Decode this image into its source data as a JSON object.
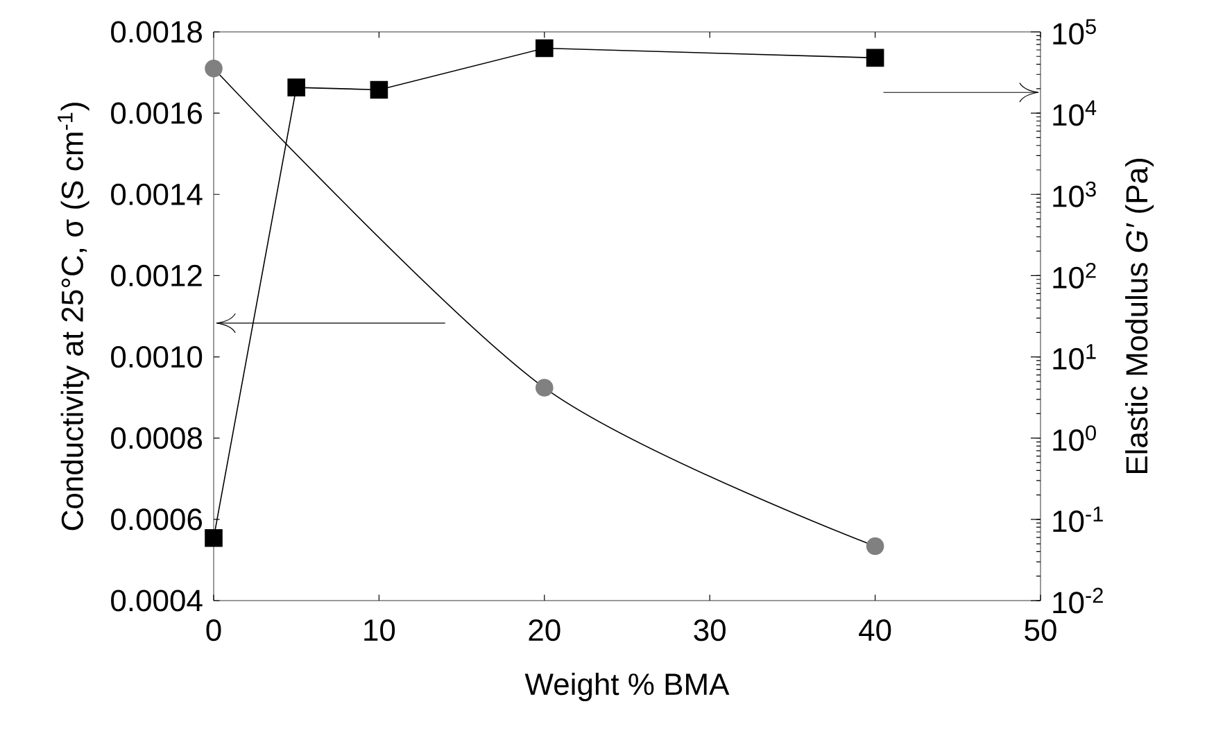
{
  "chart_data": {
    "type": "line",
    "xlabel": "Weight % BMA",
    "ylabel": "Conductivity at 25°C, σ (S cm$^{-1}$)",
    "y2label": "Elastic Modulus *G′* (Pa)",
    "series": [
      {
        "color": "#808080",
        "marker": "circle",
        "axis": "y",
        "x": [
          0,
          20,
          40
        ],
        "values": [
          0.00171,
          0.000924,
          0.000534
        ]
      },
      {
        "color": "#000000",
        "marker": "square",
        "axis": "y2",
        "x": [
          0,
          5,
          10,
          20,
          40
        ],
        "values": [
          0.059,
          20700,
          19400,
          63000,
          48000
        ]
      }
    ],
    "xlim": [
      0,
      50
    ],
    "xticks": [
      0,
      10,
      20,
      30,
      40,
      50
    ],
    "ylim": [
      0.0004,
      0.0018
    ],
    "yticks": [
      {
        "value": 0.0004,
        "label": "0.0004"
      },
      {
        "value": 0.0006,
        "label": "0.0006"
      },
      {
        "value": 0.0008,
        "label": "0.0008"
      },
      {
        "value": 0.001,
        "label": "0.0010"
      },
      {
        "value": 0.0012,
        "label": "0.0012"
      },
      {
        "value": 0.0014,
        "label": "0.0014"
      },
      {
        "value": 0.0016,
        "label": "0.0016"
      },
      {
        "value": 0.0018,
        "label": "0.0018"
      }
    ],
    "y2lim": [
      0.01,
      100000
    ],
    "y2ticks": [
      {
        "value": 0.01,
        "label": "10$^{-2}$"
      },
      {
        "value": 0.1,
        "label": "10$^{-1}$"
      },
      {
        "value": 1,
        "label": "10$^{0}$"
      },
      {
        "value": 10,
        "label": "10$^{1}$"
      },
      {
        "value": 100,
        "label": "10$^{2}$"
      },
      {
        "value": 1000,
        "label": "10$^{3}$"
      },
      {
        "value": 10000,
        "label": "10$^{4}$"
      },
      {
        "value": 100000,
        "label": "10$^{5}$"
      }
    ],
    "log": "y2",
    "grid": false,
    "line_style": "solid"
  }
}
